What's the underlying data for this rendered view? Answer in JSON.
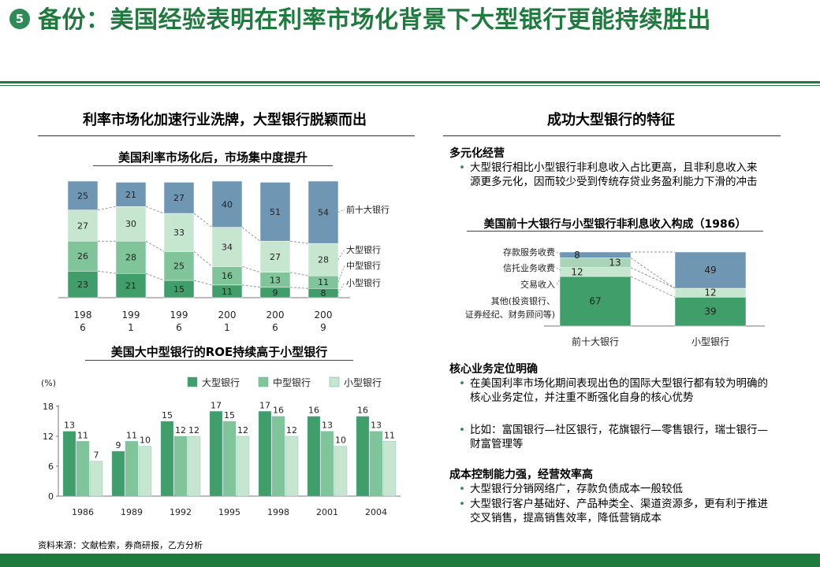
{
  "page": {
    "number": "5",
    "title": "备份：美国经验表明在利率市场化背景下大型银行更能持续胜出",
    "source": "资料来源：文献检索，券商研报，乙方分析"
  },
  "left": {
    "heading": "利率市场化加速行业洗牌，大型银行脱颖而出",
    "chart1_title": "美国利率市场化后，市场集中度提升",
    "chart2_title": "美国大中型银行的ROE持续高于小型银行"
  },
  "right": {
    "heading": "成功大型银行的特征",
    "s1": {
      "head": "多元化经营",
      "bullets": [
        "大型银行相比小型银行非利息收入占比更高，且非利息收入来源更多元化，因而较少受到传统存贷业务盈利能力下滑的冲击"
      ]
    },
    "chart3_title": "美国前十大银行与小型银行非利息收入构成（1986）",
    "s2": {
      "head": "核心业务定位明确",
      "bullets": [
        "在美国利率市场化期间表现出色的国际大型银行都有较为明确的核心业务定位，并注重不断强化自身的核心优势",
        "比如：富国银行—社区银行，花旗银行—零售银行，瑞士银行—财富管理等"
      ]
    },
    "s3": {
      "head": "成本控制能力强，经营效率高",
      "bullets": [
        "大型银行分销网络广，存款负债成本一般较低",
        "大型银行客户基础好、产品种类全、渠道资源多，更有利于推进交叉销售，提高销售效率，降低营销成本"
      ]
    }
  },
  "chart_data": [
    {
      "id": "concentration",
      "type": "bar",
      "stacked": true,
      "title": "美国利率市场化后，市场集中度提升",
      "categories": [
        "1986",
        "1991",
        "1996",
        "2001",
        "2006",
        "2009"
      ],
      "category_labels": [
        [
          "198",
          "6"
        ],
        [
          "199",
          "1"
        ],
        [
          "199",
          "6"
        ],
        [
          "200",
          "1"
        ],
        [
          "200",
          "6"
        ],
        [
          "200",
          "9"
        ]
      ],
      "series": [
        {
          "name": "小型银行",
          "values": [
            23,
            21,
            15,
            11,
            9,
            8
          ],
          "color": "#3f9e6a"
        },
        {
          "name": "中型银行",
          "values": [
            26,
            28,
            25,
            16,
            13,
            11
          ],
          "color": "#80c49a"
        },
        {
          "name": "大型银行",
          "values": [
            27,
            30,
            33,
            34,
            27,
            28
          ],
          "color": "#c6e6cf"
        },
        {
          "name": "前十大银行",
          "values": [
            25,
            21,
            27,
            40,
            51,
            54
          ],
          "color": "#6f97b3"
        }
      ],
      "ylim": [
        0,
        100
      ]
    },
    {
      "id": "roe",
      "type": "bar",
      "title": "美国大中型银行的ROE持续高于小型银行",
      "unit": "(%)",
      "categories": [
        "1986",
        "1989",
        "1992",
        "1995",
        "1998",
        "2001",
        "2004"
      ],
      "series": [
        {
          "name": "大型银行",
          "values": [
            13,
            9,
            15,
            17,
            17,
            16,
            16
          ],
          "color": "#3f9e6a"
        },
        {
          "name": "中型银行",
          "values": [
            11,
            11,
            12,
            15,
            16,
            13,
            13
          ],
          "color": "#80c49a"
        },
        {
          "name": "小型银行",
          "values": [
            7,
            10,
            12,
            12,
            12,
            10,
            11
          ],
          "color": "#c6e6cf"
        }
      ],
      "yticks": [
        0,
        6,
        12,
        18
      ],
      "ylim": [
        0,
        18
      ]
    },
    {
      "id": "nonint",
      "type": "bar",
      "stacked": true,
      "title": "美国前十大银行与小型银行非利息收入构成（1986）",
      "categories": [
        "前十大银行",
        "小型银行"
      ],
      "series": [
        {
          "name": "其他(投资银行、证券经纪、财务顾问等)",
          "values": [
            67,
            39
          ],
          "color": "#3f9e6a"
        },
        {
          "name": "交易收入",
          "values": [
            0,
            0
          ],
          "color": "#80c49a"
        },
        {
          "name": "信托业务收费",
          "values": [
            12,
            12
          ],
          "color": "#c6e6cf"
        },
        {
          "name": "存款服务收费",
          "values": [
            13,
            0
          ],
          "color": "#a9d4b8"
        },
        {
          "name": "",
          "values": [
            8,
            49
          ],
          "color": "#6f97b3"
        }
      ],
      "labels_left": [
        "存款服务收费",
        "信托业务收费",
        "交易收入",
        "其他(投资银行、",
        "证券经纪、财务顾问等)"
      ],
      "ylim": [
        0,
        100
      ]
    }
  ]
}
